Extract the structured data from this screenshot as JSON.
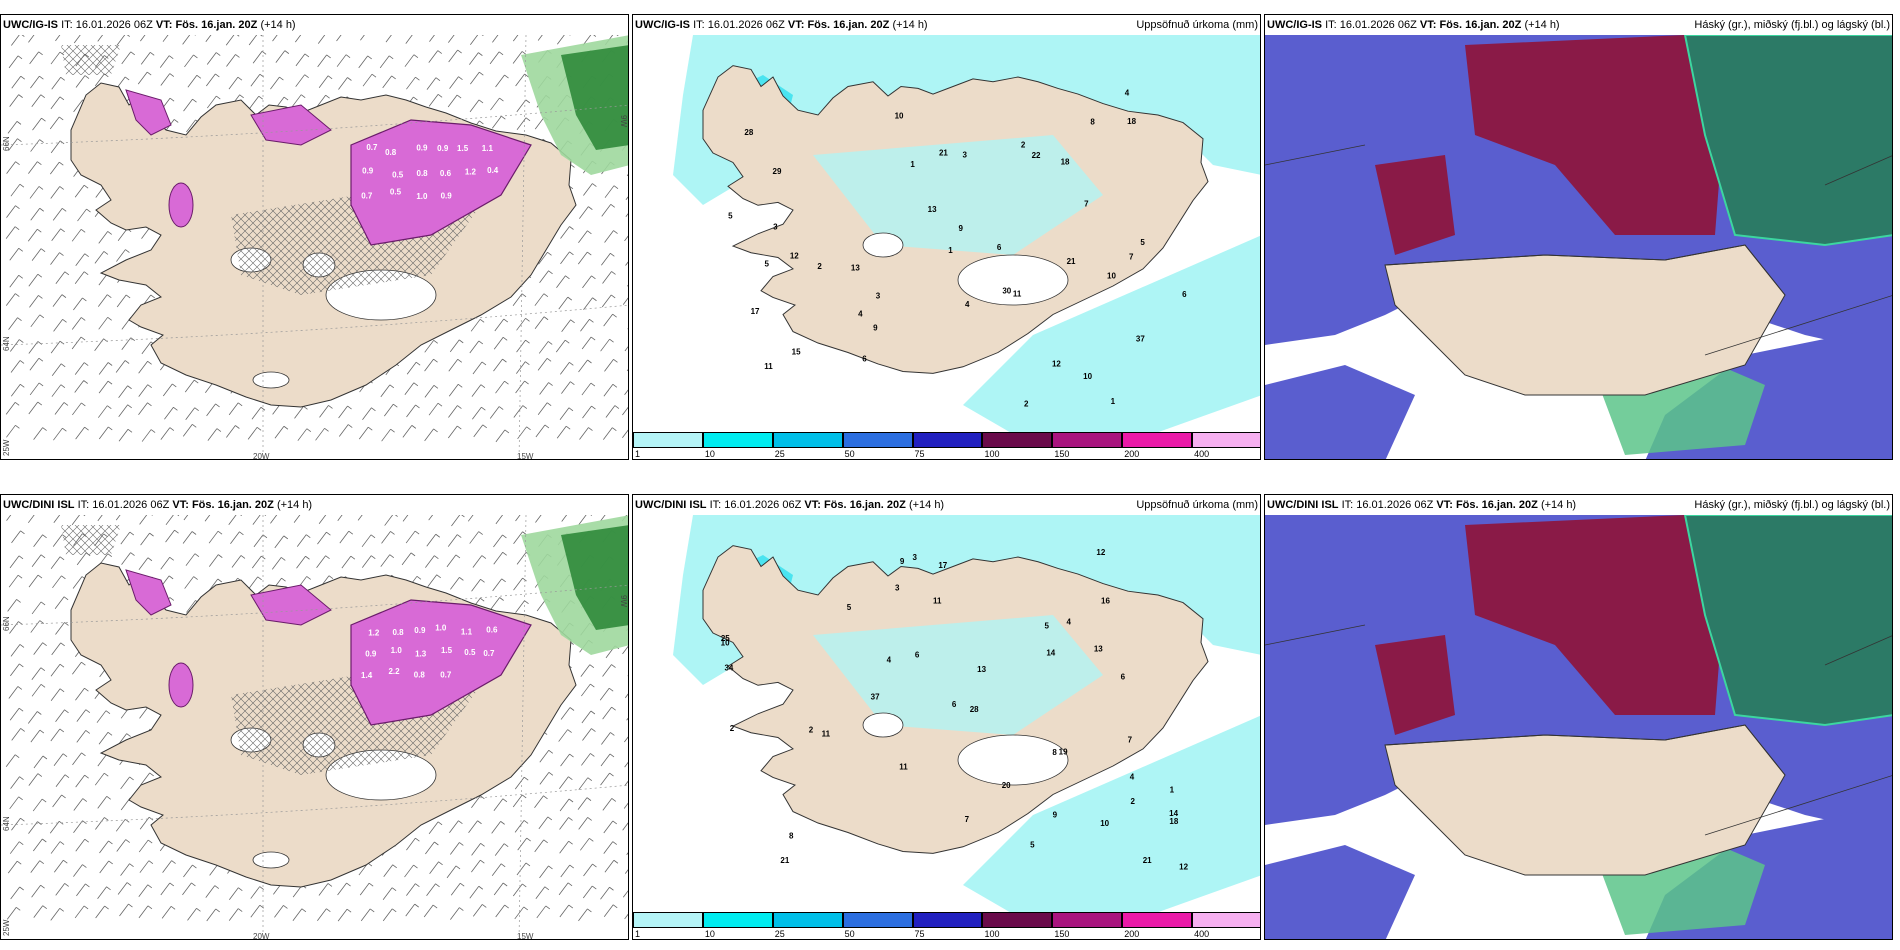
{
  "colors": {
    "land": "#ecdcc9",
    "sea_cyan": "#aef5f5",
    "sea_cyan2": "#39e0ee",
    "cloud_blue": "#5a5ecf",
    "cloud_red": "#8a1a47",
    "cloud_green": "#2c7a66",
    "snow_magenta": "#d86ad6",
    "green_dark": "#2f8a3b",
    "green_light": "#9fd89d"
  },
  "rows": [
    {
      "model": "UWC/IG-IS",
      "it_label": "IT:",
      "it_value": "16.01.2026 06Z",
      "vt_label": "VT:",
      "vt_value": "Fös. 16.jan. 20Z",
      "lead": "(+14 h)",
      "snow_values": [
        "0.7",
        "0.8",
        "0.9",
        "0.9",
        "1.5",
        "1.1",
        "0.9",
        "0.5",
        "0.8",
        "0.6",
        "1.2",
        "0.4",
        "0.7",
        "0.5",
        "1.0",
        "0.9"
      ],
      "precip_values": [
        "1",
        "12",
        "30",
        "28",
        "37",
        "29",
        "15",
        "13",
        "18",
        "21",
        "22",
        "10",
        "9",
        "10",
        "6",
        "17",
        "21",
        "9",
        "5",
        "11",
        "4",
        "3",
        "7",
        "6",
        "5",
        "3",
        "2",
        "1",
        "13",
        "18",
        "11",
        "5",
        "4",
        "2",
        "1",
        "10",
        "7",
        "12",
        "8",
        "2",
        "3",
        "4",
        "6"
      ]
    },
    {
      "model": "UWC/DINI ISL",
      "it_label": "IT:",
      "it_value": "16.01.2026 06Z",
      "vt_label": "VT:",
      "vt_value": "Fös. 16.jan. 20Z",
      "lead": "(+14 h)",
      "snow_values": [
        "1.2",
        "0.8",
        "0.9",
        "1.0",
        "1.1",
        "0.6",
        "0.9",
        "1.0",
        "1.3",
        "1.5",
        "0.5",
        "0.7",
        "1.4",
        "2.2",
        "0.8",
        "0.7"
      ],
      "precip_values": [
        "5",
        "21",
        "34",
        "4",
        "19",
        "28",
        "17",
        "12",
        "20",
        "11",
        "25",
        "13",
        "14",
        "21",
        "9",
        "7",
        "5",
        "6",
        "3",
        "2",
        "10",
        "18",
        "11",
        "12",
        "6",
        "37",
        "8",
        "4",
        "1",
        "3",
        "2",
        "14",
        "16",
        "9",
        "7",
        "13",
        "11",
        "10",
        "5",
        "8",
        "6",
        "4",
        "2"
      ]
    }
  ],
  "panel_titles": {
    "precip": "Uppsöfnuð úrkoma (mm)",
    "cloud": "Háský (gr.), miðský (fj.bl.) og lágský (bl.)"
  },
  "axis_labels": {
    "lat66": "66N",
    "lat64": "64N",
    "lon20": "20W",
    "lon15": "15W",
    "lon25": "25W",
    "lon9": "9W"
  },
  "colorbar": {
    "ticks": [
      "1",
      "10",
      "25",
      "50",
      "75",
      "100",
      "150",
      "200",
      "400"
    ],
    "colors": [
      "#b4f4f7",
      "#00ecf0",
      "#00bfe8",
      "#2b6ee0",
      "#2120c0",
      "#6a0a4a",
      "#a8147e",
      "#ea1aa8",
      "#f6b0f0"
    ]
  }
}
